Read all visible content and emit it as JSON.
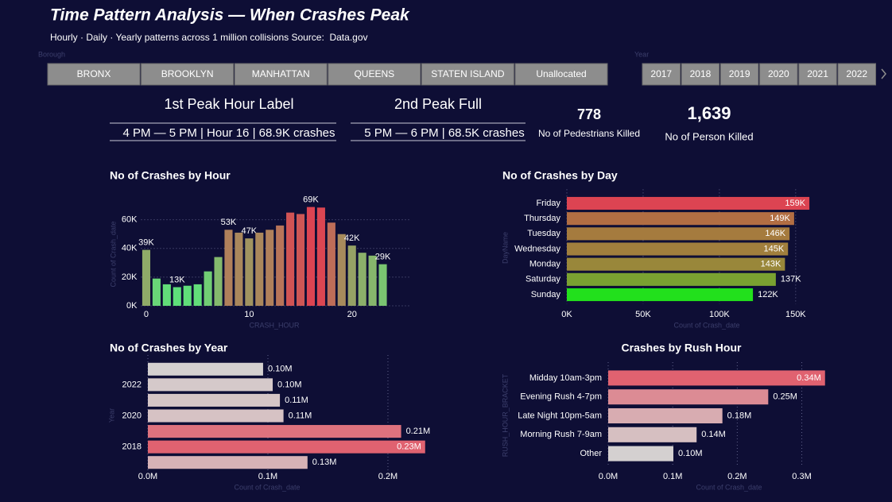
{
  "header": {
    "title": "Time Pattern Analysis — When Crashes Peak",
    "subtitle": "Hourly · Daily · Yearly patterns across 1 million collisions Source:  Data.gov"
  },
  "slicers": {
    "borough": {
      "label": "Borough",
      "items": [
        "BRONX",
        "BROOKLYN",
        "MANHATTAN",
        "QUEENS",
        "STATEN ISLAND",
        "Unallocated"
      ]
    },
    "year": {
      "label": "Year",
      "items": [
        "2017",
        "2018",
        "2019",
        "2020",
        "2021",
        "2022"
      ]
    }
  },
  "cards": [
    {
      "label": "1st Peak Hour Label",
      "value": "4 PM — 5 PM | Hour 16 | 68.9K crashes"
    },
    {
      "label": "2nd Peak Full",
      "value": "5 PM — 6 PM | 68.5K crashes"
    },
    {
      "value": "778",
      "label": "No of Pedestrians Killed"
    },
    {
      "value": "1,639",
      "label": "No of Person Killed"
    }
  ],
  "chart_data": [
    {
      "type": "bar",
      "orientation": "vertical",
      "title": "No of Crashes by Hour",
      "x_label": "CRASH_HOUR",
      "y_label": "Count of Crash_date",
      "x": [
        0,
        1,
        2,
        3,
        4,
        5,
        6,
        7,
        8,
        9,
        10,
        11,
        12,
        13,
        14,
        15,
        16,
        17,
        18,
        19,
        20,
        21,
        22,
        23
      ],
      "values": [
        39000,
        19000,
        15000,
        13000,
        14000,
        15000,
        24000,
        34000,
        53000,
        51000,
        47000,
        51000,
        53000,
        56000,
        65000,
        64000,
        68900,
        68500,
        58000,
        50000,
        42000,
        37000,
        35000,
        29000
      ],
      "value_labels": [
        "39K",
        null,
        null,
        "13K",
        null,
        null,
        null,
        null,
        "53K",
        null,
        "47K",
        null,
        null,
        null,
        null,
        null,
        "69K",
        null,
        null,
        null,
        "42K",
        null,
        null,
        "29K"
      ],
      "xlim": [
        -0.5,
        23.5
      ],
      "xticks": [
        0,
        10,
        20
      ],
      "ylim": [
        0,
        72000
      ],
      "yticks": [
        {
          "value": 0,
          "label": "0K"
        },
        {
          "value": 20000,
          "label": "20K"
        },
        {
          "value": 40000,
          "label": "40K"
        },
        {
          "value": 60000,
          "label": "60K"
        }
      ],
      "grid": true,
      "gradient": [
        "#5ee07a",
        "#7fc070",
        "#a88a5c",
        "#dc4452"
      ]
    },
    {
      "type": "bar",
      "orientation": "horizontal",
      "title": "No of Crashes by Day",
      "x_label": "Count of Crash_date",
      "y_label": "DayName",
      "categories": [
        "Friday",
        "Thursday",
        "Tuesday",
        "Wednesday",
        "Monday",
        "Saturday",
        "Sunday"
      ],
      "values": [
        159000,
        149000,
        146000,
        145000,
        143000,
        137000,
        122000
      ],
      "value_labels": [
        "159K",
        "149K",
        "146K",
        "145K",
        "143K",
        "137K",
        "122K"
      ],
      "xlim": [
        0,
        160000
      ],
      "xticks": [
        {
          "value": 0,
          "label": "0K"
        },
        {
          "value": 50000,
          "label": "50K"
        },
        {
          "value": 100000,
          "label": "100K"
        },
        {
          "value": 150000,
          "label": "150K"
        }
      ],
      "grid": true,
      "gradient": [
        "#22e01c",
        "#8e9236",
        "#dc4452"
      ]
    },
    {
      "type": "bar",
      "orientation": "horizontal",
      "title": "No of Crashes by Year",
      "x_label": "Count of Crash_date",
      "y_label": "Year",
      "categories": [
        null,
        "2022",
        null,
        "2020",
        null,
        "2018",
        null
      ],
      "values": [
        96000,
        104000,
        110000,
        113000,
        211000,
        231000,
        133000
      ],
      "value_labels": [
        "0.10M",
        "0.10M",
        "0.11M",
        "0.11M",
        "0.21M",
        "0.23M",
        "0.13M"
      ],
      "xlim": [
        0,
        255000
      ],
      "xticks": [
        {
          "value": 0,
          "label": "0.0M"
        },
        {
          "value": 100000,
          "label": "0.1M"
        },
        {
          "value": 200000,
          "label": "0.2M"
        }
      ],
      "grid": true,
      "gradient": [
        "#d4d0d0",
        "#e06270"
      ]
    },
    {
      "type": "bar",
      "orientation": "horizontal",
      "title": "Crashes by Rush Hour",
      "x_label": "Count of Crash_date",
      "y_label": "RUSH_HOUR_BRACKET",
      "categories": [
        "Midday 10am-3pm",
        "Evening Rush 4-7pm",
        "Late Night 10pm-5am",
        "Morning Rush 7-9am",
        "Other"
      ],
      "values": [
        336000,
        248000,
        177000,
        137000,
        101000
      ],
      "value_labels": [
        "0.34M",
        "0.25M",
        "0.18M",
        "0.14M",
        "0.10M"
      ],
      "xlim": [
        0,
        340000
      ],
      "xticks": [
        {
          "value": 0,
          "label": "0.0M"
        },
        {
          "value": 100000,
          "label": "0.1M"
        },
        {
          "value": 200000,
          "label": "0.2M"
        },
        {
          "value": 300000,
          "label": "0.3M"
        }
      ],
      "grid": true,
      "gradient": [
        "#d4d0d0",
        "#e06270"
      ]
    }
  ]
}
